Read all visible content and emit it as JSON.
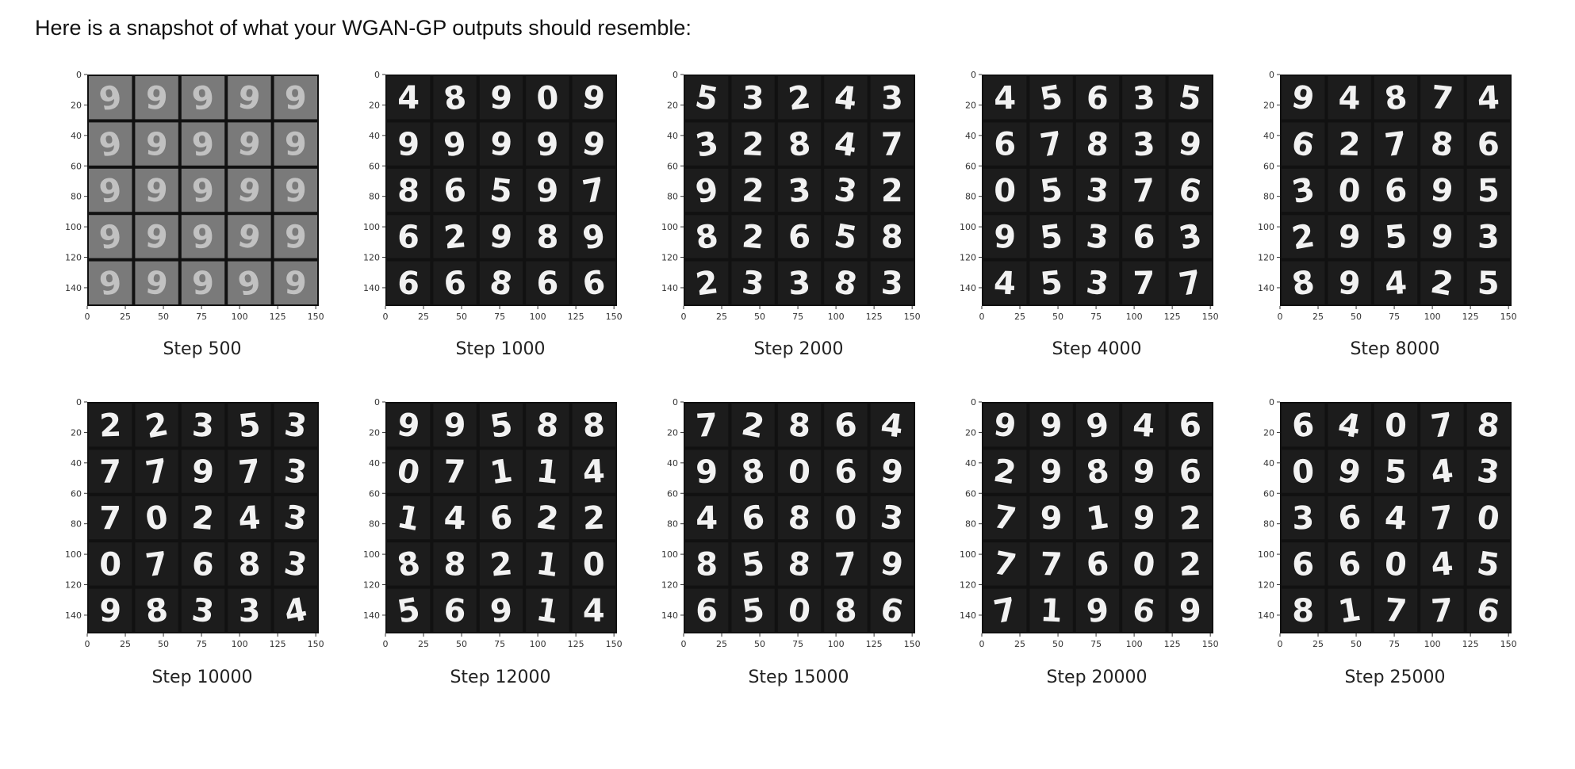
{
  "intro_text": "Here is a snapshot of what your WGAN-GP outputs should resemble:",
  "axis": {
    "x_ticks": [
      "0",
      "25",
      "50",
      "75",
      "100",
      "125",
      "150"
    ],
    "y_ticks": [
      "0",
      "20",
      "40",
      "60",
      "80",
      "100",
      "120",
      "140"
    ]
  },
  "colors": {
    "grid_frame": "#111111",
    "early_cell_background": "#7a7a7a",
    "late_cell_background": "#1c1c1c",
    "digit_stroke": "#f2f2f2"
  },
  "figures": [
    {
      "caption": "Step 500",
      "noise": 0.95,
      "digits": [
        "9",
        "9",
        "9",
        "9",
        "9",
        "9",
        "9",
        "9",
        "9",
        "9",
        "9",
        "9",
        "9",
        "9",
        "9",
        "9",
        "9",
        "9",
        "9",
        "9",
        "9",
        "9",
        "9",
        "9",
        "9"
      ]
    },
    {
      "caption": "Step 1000",
      "noise": 0.55,
      "digits": [
        "4",
        "8",
        "9",
        "0",
        "9",
        "9",
        "9",
        "9",
        "9",
        "9",
        "8",
        "6",
        "5",
        "9",
        "7",
        "6",
        "2",
        "9",
        "8",
        "9",
        "6",
        "6",
        "8",
        "6",
        "6"
      ]
    },
    {
      "caption": "Step 2000",
      "noise": 0.35,
      "digits": [
        "5",
        "3",
        "2",
        "4",
        "3",
        "3",
        "2",
        "8",
        "4",
        "7",
        "9",
        "2",
        "3",
        "3",
        "2",
        "8",
        "2",
        "6",
        "5",
        "8",
        "2",
        "3",
        "3",
        "8",
        "3"
      ]
    },
    {
      "caption": "Step 4000",
      "noise": 0.25,
      "digits": [
        "4",
        "5",
        "6",
        "3",
        "5",
        "6",
        "7",
        "8",
        "3",
        "9",
        "0",
        "5",
        "3",
        "7",
        "6",
        "9",
        "5",
        "3",
        "6",
        "3",
        "4",
        "5",
        "3",
        "7",
        "7"
      ]
    },
    {
      "caption": "Step 8000",
      "noise": 0.25,
      "digits": [
        "9",
        "4",
        "8",
        "7",
        "4",
        "6",
        "2",
        "7",
        "8",
        "6",
        "3",
        "0",
        "6",
        "9",
        "5",
        "2",
        "9",
        "5",
        "9",
        "3",
        "8",
        "9",
        "4",
        "2",
        "5"
      ]
    },
    {
      "caption": "Step 10000",
      "noise": 0.15,
      "digits": [
        "2",
        "2",
        "3",
        "5",
        "3",
        "7",
        "7",
        "9",
        "7",
        "3",
        "7",
        "0",
        "2",
        "4",
        "3",
        "0",
        "7",
        "6",
        "8",
        "3",
        "9",
        "8",
        "3",
        "3",
        "4"
      ]
    },
    {
      "caption": "Step 12000",
      "noise": 0.15,
      "digits": [
        "9",
        "9",
        "5",
        "8",
        "8",
        "0",
        "7",
        "1",
        "1",
        "4",
        "1",
        "4",
        "6",
        "2",
        "2",
        "8",
        "8",
        "2",
        "1",
        "0",
        "5",
        "6",
        "9",
        "1",
        "4"
      ]
    },
    {
      "caption": "Step 15000",
      "noise": 0.12,
      "digits": [
        "7",
        "2",
        "8",
        "6",
        "4",
        "9",
        "8",
        "0",
        "6",
        "9",
        "4",
        "6",
        "8",
        "0",
        "3",
        "8",
        "5",
        "8",
        "7",
        "9",
        "6",
        "5",
        "0",
        "8",
        "6"
      ]
    },
    {
      "caption": "Step 20000",
      "noise": 0.1,
      "digits": [
        "9",
        "9",
        "9",
        "4",
        "6",
        "2",
        "9",
        "8",
        "9",
        "6",
        "7",
        "9",
        "1",
        "9",
        "2",
        "7",
        "7",
        "6",
        "0",
        "2",
        "7",
        "1",
        "9",
        "6",
        "9"
      ]
    },
    {
      "caption": "Step 25000",
      "noise": 0.1,
      "digits": [
        "6",
        "4",
        "0",
        "7",
        "8",
        "0",
        "9",
        "5",
        "4",
        "3",
        "3",
        "6",
        "4",
        "7",
        "0",
        "6",
        "6",
        "0",
        "4",
        "5",
        "8",
        "1",
        "7",
        "7",
        "6"
      ]
    }
  ]
}
